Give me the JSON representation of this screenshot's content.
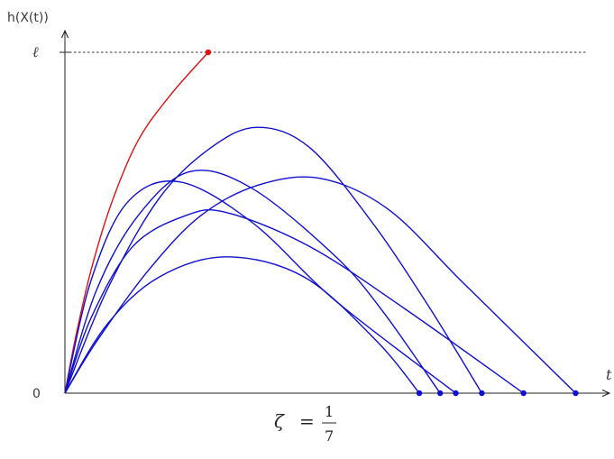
{
  "chart_data": {
    "type": "line",
    "title": "",
    "ylabel": "h(X(t))",
    "xlabel": "t",
    "y_ticks": [
      {
        "label": "0",
        "value": 0
      },
      {
        "label": "ℓ",
        "value": 1
      }
    ],
    "threshold": {
      "value": 1,
      "style": "dashed"
    },
    "ylim": [
      0,
      1
    ],
    "xlim": [
      0,
      1
    ],
    "caption": {
      "symbol": "ζ",
      "equals": "=",
      "numerator": "1",
      "denominator": "7"
    },
    "series": [
      {
        "color": "#e01010",
        "stops_at_threshold": true,
        "x": [
          0.0,
          0.02,
          0.05,
          0.09,
          0.14,
          0.2,
          0.275
        ],
        "y": [
          0.0,
          0.16,
          0.36,
          0.56,
          0.74,
          0.87,
          1.0
        ]
      },
      {
        "color": "#1010d0",
        "x": [
          0.0,
          0.08,
          0.18,
          0.31,
          0.46,
          0.6,
          0.68
        ],
        "y": [
          0.0,
          0.2,
          0.34,
          0.4,
          0.34,
          0.15,
          0.0
        ]
      },
      {
        "color": "#1010d0",
        "x": [
          0.0,
          0.06,
          0.14,
          0.24,
          0.36,
          0.52,
          0.61,
          0.72
        ],
        "y": [
          0.0,
          0.3,
          0.52,
          0.65,
          0.6,
          0.4,
          0.24,
          0.0
        ]
      },
      {
        "color": "#1010d0",
        "x": [
          0.0,
          0.05,
          0.12,
          0.22,
          0.36,
          0.52,
          0.75
        ],
        "y": [
          0.0,
          0.33,
          0.56,
          0.62,
          0.5,
          0.27,
          0.0
        ]
      },
      {
        "color": "#1010d0",
        "x": [
          0.0,
          0.05,
          0.13,
          0.23,
          0.31,
          0.47,
          0.65,
          0.88
        ],
        "y": [
          0.0,
          0.22,
          0.43,
          0.52,
          0.53,
          0.43,
          0.25,
          0.0
        ]
      },
      {
        "color": "#1010d0",
        "x": [
          0.0,
          0.08,
          0.18,
          0.28,
          0.37,
          0.47,
          0.59,
          0.7,
          0.8
        ],
        "y": [
          0.0,
          0.3,
          0.57,
          0.72,
          0.78,
          0.72,
          0.5,
          0.25,
          0.0
        ]
      },
      {
        "color": "#1010d0",
        "x": [
          0.0,
          0.06,
          0.16,
          0.26,
          0.37,
          0.49,
          0.62,
          0.76,
          0.9,
          0.98
        ],
        "y": [
          0.0,
          0.15,
          0.36,
          0.52,
          0.61,
          0.63,
          0.54,
          0.33,
          0.12,
          0.0
        ]
      }
    ]
  }
}
